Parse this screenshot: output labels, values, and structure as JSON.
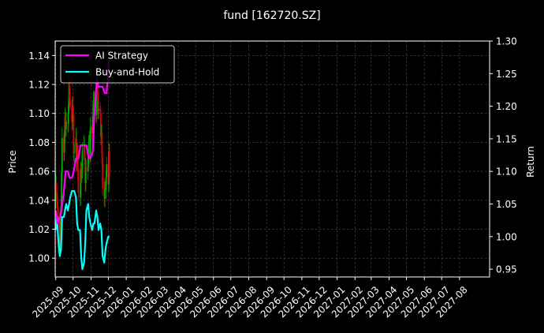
{
  "chart_data": {
    "type": "line",
    "title": "fund [162720.SZ]",
    "ylabel": "Price",
    "y2label": "Return",
    "ylim": [
      0.987,
      1.15
    ],
    "y2lim": [
      0.938,
      1.3
    ],
    "yticks": [
      "1.00",
      "1.02",
      "1.04",
      "1.06",
      "1.08",
      "1.10",
      "1.12",
      "1.14"
    ],
    "y2ticks": [
      "0.95",
      "1.00",
      "1.05",
      "1.10",
      "1.15",
      "1.20",
      "1.25",
      "1.30"
    ],
    "xticks": [
      "2025-09",
      "2025-10",
      "2025-11",
      "2025-12",
      "2026-01",
      "2026-02",
      "2026-03",
      "2026-04",
      "2026-05",
      "2026-06",
      "2026-07",
      "2026-08",
      "2026-09",
      "2026-10",
      "2026-11",
      "2026-12",
      "2027-01",
      "2027-02",
      "2027-03",
      "2027-04",
      "2027-05",
      "2027-06",
      "2027-07",
      "2027-08"
    ],
    "grid": true,
    "legend_position": "top-left",
    "colors": {
      "ai": "#ff00ff",
      "bh": "#00ffff",
      "up": "#00aa00",
      "down": "#dd0000",
      "grid": "#555555",
      "axes": "#ffffff"
    },
    "series": [
      {
        "name": "AI Strategy",
        "axis": "right",
        "x": [
          "2025-09-01",
          "2025-09-04",
          "2025-09-08",
          "2025-09-11",
          "2025-09-15",
          "2025-09-18",
          "2025-09-22",
          "2025-09-25",
          "2025-09-29",
          "2025-10-02",
          "2025-10-06",
          "2025-10-10",
          "2025-10-14",
          "2025-10-17",
          "2025-10-21",
          "2025-10-24",
          "2025-10-28",
          "2025-10-31",
          "2025-11-04",
          "2025-11-07",
          "2025-11-11",
          "2025-11-14",
          "2025-11-18",
          "2025-11-21",
          "2025-11-25",
          "2025-11-28",
          "2025-12-02"
        ],
        "values": [
          1.04,
          1.02,
          1.03,
          1.04,
          1.07,
          1.1,
          1.1,
          1.09,
          1.09,
          1.1,
          1.12,
          1.12,
          1.14,
          1.14,
          1.14,
          1.14,
          1.12,
          1.12,
          1.13,
          1.19,
          1.24,
          1.23,
          1.23,
          1.23,
          1.22,
          1.22,
          1.27
        ]
      },
      {
        "name": "Buy-and-Hold",
        "axis": "right",
        "x": [
          "2025-09-01",
          "2025-09-03",
          "2025-09-05",
          "2025-09-08",
          "2025-09-10",
          "2025-09-12",
          "2025-09-15",
          "2025-09-17",
          "2025-09-19",
          "2025-09-22",
          "2025-09-24",
          "2025-09-26",
          "2025-09-29",
          "2025-10-01",
          "2025-10-03",
          "2025-10-06",
          "2025-10-08",
          "2025-10-10",
          "2025-10-13",
          "2025-10-15",
          "2025-10-17",
          "2025-10-20",
          "2025-10-22",
          "2025-10-24",
          "2025-10-27",
          "2025-10-29",
          "2025-10-31",
          "2025-11-03",
          "2025-11-05",
          "2025-11-07",
          "2025-11-10",
          "2025-11-12",
          "2025-11-14",
          "2025-11-17",
          "2025-11-19",
          "2025-11-21",
          "2025-11-24",
          "2025-11-26",
          "2025-11-28",
          "2025-12-01",
          "2025-12-03"
        ],
        "values": [
          1.01,
          1.03,
          1.0,
          0.97,
          0.98,
          1.03,
          1.03,
          1.04,
          1.05,
          1.04,
          1.05,
          1.06,
          1.07,
          1.07,
          1.07,
          1.06,
          1.02,
          1.01,
          1.01,
          0.97,
          0.95,
          0.96,
          0.99,
          1.04,
          1.05,
          1.03,
          1.02,
          1.01,
          1.02,
          1.02,
          1.04,
          1.03,
          1.01,
          1.02,
          1.01,
          0.97,
          0.96,
          0.98,
          0.99,
          1.0,
          1.0
        ]
      },
      {
        "name": "Price candles",
        "axis": "left",
        "x": [
          "2025-09-01",
          "2025-09-02",
          "2025-09-03",
          "2025-09-04",
          "2025-09-05",
          "2025-09-08",
          "2025-09-09",
          "2025-09-10",
          "2025-09-11",
          "2025-09-12",
          "2025-09-15",
          "2025-09-16",
          "2025-09-17",
          "2025-09-18",
          "2025-09-19",
          "2025-09-22",
          "2025-09-23",
          "2025-09-24",
          "2025-09-25",
          "2025-09-26",
          "2025-09-29",
          "2025-09-30",
          "2025-10-01",
          "2025-10-02",
          "2025-10-03",
          "2025-10-06",
          "2025-10-07",
          "2025-10-08",
          "2025-10-09",
          "2025-10-10",
          "2025-10-13",
          "2025-10-14",
          "2025-10-15",
          "2025-10-16",
          "2025-10-17",
          "2025-10-20",
          "2025-10-21",
          "2025-10-22",
          "2025-10-23",
          "2025-10-24",
          "2025-10-27",
          "2025-10-28",
          "2025-10-29",
          "2025-10-30",
          "2025-10-31",
          "2025-11-03",
          "2025-11-04",
          "2025-11-05",
          "2025-11-06",
          "2025-11-07",
          "2025-11-10",
          "2025-11-11",
          "2025-11-12",
          "2025-11-13",
          "2025-11-14",
          "2025-11-17",
          "2025-11-18",
          "2025-11-19",
          "2025-11-20",
          "2025-11-21",
          "2025-11-24",
          "2025-11-25",
          "2025-11-26",
          "2025-11-27",
          "2025-11-28",
          "2025-12-01",
          "2025-12-02",
          "2025-12-03"
        ],
        "open": [
          1.04,
          1.052,
          1.045,
          1.039,
          1.035,
          1.007,
          1.027,
          1.016,
          1.036,
          1.059,
          1.083,
          1.073,
          1.085,
          1.098,
          1.089,
          1.094,
          1.093,
          1.106,
          1.119,
          1.109,
          1.105,
          1.094,
          1.105,
          1.099,
          1.073,
          1.073,
          1.083,
          1.067,
          1.075,
          1.06,
          1.045,
          1.042,
          1.062,
          1.058,
          1.061,
          1.074,
          1.078,
          1.069,
          1.052,
          1.063,
          1.06,
          1.069,
          1.079,
          1.081,
          1.072,
          1.091,
          1.086,
          1.098,
          1.109,
          1.109,
          1.106,
          1.099,
          1.12,
          1.116,
          1.102,
          1.103,
          1.101,
          1.084,
          1.087,
          1.069,
          1.048,
          1.041,
          1.048,
          1.047,
          1.056,
          1.065,
          1.051,
          1.074
        ],
        "close": [
          1.052,
          1.045,
          1.039,
          1.035,
          1.007,
          1.027,
          1.016,
          1.036,
          1.059,
          1.083,
          1.073,
          1.085,
          1.098,
          1.089,
          1.094,
          1.093,
          1.106,
          1.119,
          1.109,
          1.105,
          1.094,
          1.105,
          1.099,
          1.073,
          1.073,
          1.083,
          1.067,
          1.075,
          1.06,
          1.045,
          1.042,
          1.062,
          1.058,
          1.061,
          1.074,
          1.078,
          1.069,
          1.052,
          1.063,
          1.06,
          1.069,
          1.079,
          1.081,
          1.072,
          1.091,
          1.086,
          1.098,
          1.109,
          1.109,
          1.106,
          1.099,
          1.12,
          1.116,
          1.102,
          1.103,
          1.101,
          1.084,
          1.087,
          1.069,
          1.048,
          1.041,
          1.048,
          1.047,
          1.056,
          1.065,
          1.051,
          1.074,
          1.058
        ],
        "high": [
          1.059,
          1.057,
          1.052,
          1.044,
          1.039,
          1.032,
          1.034,
          1.043,
          1.064,
          1.09,
          1.087,
          1.092,
          1.104,
          1.103,
          1.101,
          1.1,
          1.112,
          1.125,
          1.123,
          1.115,
          1.11,
          1.112,
          1.112,
          1.104,
          1.08,
          1.09,
          1.087,
          1.08,
          1.079,
          1.065,
          1.051,
          1.067,
          1.066,
          1.066,
          1.08,
          1.085,
          1.082,
          1.074,
          1.069,
          1.068,
          1.075,
          1.085,
          1.088,
          1.085,
          1.097,
          1.096,
          1.104,
          1.115,
          1.116,
          1.115,
          1.11,
          1.126,
          1.125,
          1.12,
          1.109,
          1.108,
          1.105,
          1.092,
          1.093,
          1.074,
          1.055,
          1.053,
          1.053,
          1.061,
          1.07,
          1.07,
          1.08,
          1.079
        ],
        "low": [
          1.035,
          1.04,
          1.034,
          1.03,
          1.003,
          1.001,
          1.01,
          1.011,
          1.03,
          1.053,
          1.067,
          1.067,
          1.079,
          1.083,
          1.084,
          1.087,
          1.087,
          1.1,
          1.104,
          1.102,
          1.088,
          1.089,
          1.093,
          1.068,
          1.066,
          1.067,
          1.06,
          1.061,
          1.053,
          1.04,
          1.036,
          1.036,
          1.052,
          1.052,
          1.055,
          1.068,
          1.064,
          1.046,
          1.046,
          1.055,
          1.054,
          1.063,
          1.073,
          1.066,
          1.066,
          1.081,
          1.079,
          1.092,
          1.103,
          1.101,
          1.093,
          1.094,
          1.109,
          1.096,
          1.096,
          1.096,
          1.078,
          1.078,
          1.063,
          1.043,
          1.036,
          1.035,
          1.042,
          1.041,
          1.05,
          1.045,
          1.046,
          1.052
        ]
      }
    ]
  }
}
